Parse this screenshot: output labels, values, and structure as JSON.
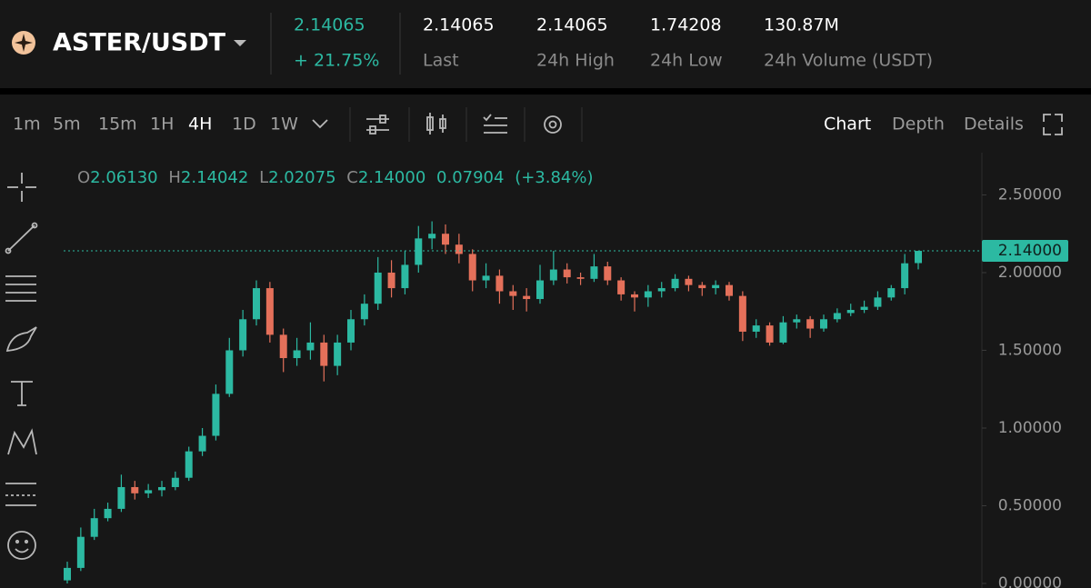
{
  "header": {
    "pair": "ASTER/USDT",
    "price": "2.14065",
    "change": "+ 21.75%",
    "stats": [
      {
        "value": "2.14065",
        "label": "Last"
      },
      {
        "value": "2.14065",
        "label": "24h High"
      },
      {
        "value": "1.74208",
        "label": "24h Low"
      },
      {
        "value": "130.87M",
        "label": "24h Volume (USDT)"
      }
    ]
  },
  "toolbar": {
    "intervals": [
      "1m",
      "5m",
      "15m",
      "1H",
      "4H",
      "1D",
      "1W"
    ],
    "tabs": [
      "Chart",
      "Depth",
      "Details"
    ]
  },
  "chart_data": {
    "type": "candlestick",
    "ohlc_legend": [
      {
        "key": "O",
        "value": "2.06130"
      },
      {
        "key": "H",
        "value": "2.14042"
      },
      {
        "key": "L",
        "value": "2.02075"
      },
      {
        "key": "C",
        "value": "2.14000"
      }
    ],
    "change": "0.07904",
    "change_pct": "(+3.84%)",
    "up_color": "#2cb9a2",
    "down_color": "#e4705a",
    "open": [
      0.02,
      0.1,
      0.3,
      0.42,
      0.48,
      0.62,
      0.58,
      0.6,
      0.62,
      0.68,
      0.85,
      0.95,
      1.22,
      1.5,
      1.7,
      1.9,
      1.6,
      1.45,
      1.5,
      1.55,
      1.4,
      1.55,
      1.7,
      1.8,
      2.0,
      1.9,
      2.05,
      2.22,
      2.25,
      2.18,
      2.12,
      1.95,
      1.98,
      1.88,
      1.85,
      1.83,
      1.95,
      2.02,
      1.97,
      1.96,
      2.04,
      1.95,
      1.86,
      1.84,
      1.88,
      1.9,
      1.96,
      1.92,
      1.9,
      1.92,
      1.85,
      1.62,
      1.66,
      1.55,
      1.68,
      1.7,
      1.64,
      1.7,
      1.74,
      1.76,
      1.78,
      1.84,
      1.9,
      2.0613
    ],
    "high": [
      0.14,
      0.36,
      0.48,
      0.52,
      0.7,
      0.66,
      0.64,
      0.66,
      0.72,
      0.88,
      1.0,
      1.28,
      1.58,
      1.76,
      1.95,
      1.94,
      1.64,
      1.58,
      1.68,
      1.6,
      1.6,
      1.76,
      1.86,
      2.1,
      2.08,
      2.14,
      2.3,
      2.33,
      2.31,
      2.25,
      2.15,
      2.06,
      2.02,
      1.92,
      1.9,
      2.05,
      2.14,
      2.06,
      2.0,
      2.12,
      2.07,
      1.97,
      1.88,
      1.92,
      1.94,
      1.99,
      1.98,
      1.94,
      1.95,
      1.94,
      1.88,
      1.7,
      1.68,
      1.72,
      1.73,
      1.72,
      1.73,
      1.77,
      1.8,
      1.82,
      1.88,
      1.92,
      2.12,
      2.14042
    ],
    "low": [
      0.0,
      0.08,
      0.28,
      0.4,
      0.46,
      0.54,
      0.55,
      0.56,
      0.6,
      0.66,
      0.82,
      0.92,
      1.2,
      1.46,
      1.66,
      1.55,
      1.36,
      1.4,
      1.44,
      1.3,
      1.34,
      1.5,
      1.66,
      1.76,
      1.84,
      1.86,
      2.0,
      2.15,
      2.12,
      2.06,
      1.88,
      1.9,
      1.8,
      1.76,
      1.75,
      1.8,
      1.92,
      1.93,
      1.92,
      1.94,
      1.92,
      1.82,
      1.75,
      1.78,
      1.84,
      1.88,
      1.88,
      1.85,
      1.86,
      1.82,
      1.56,
      1.58,
      1.53,
      1.54,
      1.64,
      1.58,
      1.62,
      1.68,
      1.72,
      1.74,
      1.76,
      1.82,
      1.86,
      2.02075
    ],
    "close": [
      0.1,
      0.3,
      0.42,
      0.48,
      0.62,
      0.58,
      0.6,
      0.62,
      0.68,
      0.85,
      0.95,
      1.22,
      1.5,
      1.7,
      1.9,
      1.6,
      1.45,
      1.5,
      1.55,
      1.4,
      1.55,
      1.7,
      1.8,
      2.0,
      1.9,
      2.05,
      2.22,
      2.25,
      2.18,
      2.12,
      1.95,
      1.98,
      1.88,
      1.85,
      1.83,
      1.95,
      2.02,
      1.97,
      1.96,
      2.04,
      1.95,
      1.86,
      1.84,
      1.88,
      1.9,
      1.96,
      1.92,
      1.9,
      1.92,
      1.85,
      1.62,
      1.66,
      1.55,
      1.68,
      1.7,
      1.64,
      1.7,
      1.74,
      1.76,
      1.78,
      1.84,
      1.9,
      2.06,
      2.14
    ],
    "ylim": [
      0,
      2.76
    ],
    "yticks": [
      {
        "value": 0,
        "label": "0.00000"
      },
      {
        "value": 0.5,
        "label": "0.50000"
      },
      {
        "value": 1,
        "label": "1.00000"
      },
      {
        "value": 1.5,
        "label": "1.50000"
      },
      {
        "value": 2,
        "label": "2.00000"
      },
      {
        "value": 2.5,
        "label": "2.50000"
      }
    ],
    "price_line": {
      "value": 2.14,
      "label": "2.14000"
    }
  }
}
